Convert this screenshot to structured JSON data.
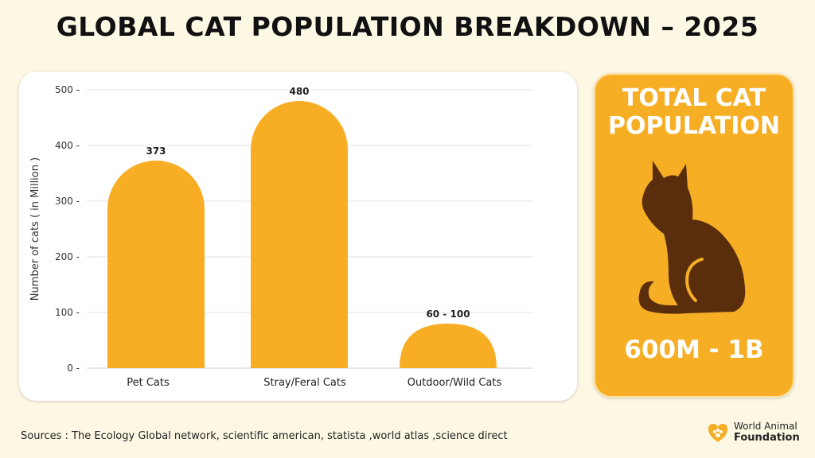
{
  "title": "GLOBAL CAT POPULATION BREAKDOWN – 2025",
  "chart_data": {
    "type": "bar",
    "categories": [
      "Pet Cats",
      "Stray/Feral Cats",
      "Outdoor/Wild Cats"
    ],
    "values": [
      373,
      480,
      80
    ],
    "value_labels": [
      "373",
      "480",
      "60 - 100"
    ],
    "ylabel": "Number of cats ( in Million )",
    "ylim": [
      0,
      500
    ],
    "yticks": [
      0,
      100,
      200,
      300,
      400,
      500
    ],
    "ytick_labels": [
      "0 -",
      "100 -",
      "200 -",
      "300 -",
      "400 -",
      "500 -"
    ],
    "grid": true,
    "bar_color": "#F7AE25"
  },
  "total": {
    "title_line1": "TOTAL CAT",
    "title_line2": "POPULATION",
    "value": "600M - 1B",
    "icon": "cat-silhouette-icon",
    "background": "#F6AE25",
    "icon_color": "#5A2E0C"
  },
  "sources": "Sources : The Ecology Global network, scientific american, statista ,world atlas ,science direct",
  "logo": {
    "line1": "World Animal",
    "line2": "Foundation",
    "icon": "paw-heart-logo-icon"
  }
}
